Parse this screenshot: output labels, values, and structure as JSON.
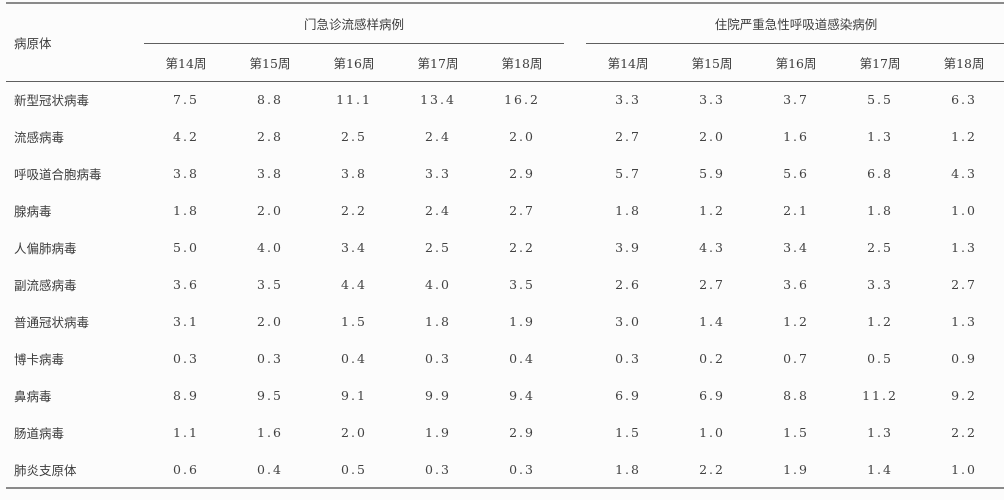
{
  "table": {
    "pathogen_header": "病原体",
    "groups": [
      {
        "label": "门急诊流感样病例",
        "weeks": [
          "第14周",
          "第15周",
          "第16周",
          "第17周",
          "第18周"
        ]
      },
      {
        "label": "住院严重急性呼吸道感染病例",
        "weeks": [
          "第14周",
          "第15周",
          "第16周",
          "第17周",
          "第18周"
        ]
      }
    ],
    "rows": [
      {
        "pathogen": "新型冠状病毒",
        "outpatient": [
          "7.5",
          "8.8",
          "11.1",
          "13.4",
          "16.2"
        ],
        "inpatient": [
          "3.3",
          "3.3",
          "3.7",
          "5.5",
          "6.3"
        ]
      },
      {
        "pathogen": "流感病毒",
        "outpatient": [
          "4.2",
          "2.8",
          "2.5",
          "2.4",
          "2.0"
        ],
        "inpatient": [
          "2.7",
          "2.0",
          "1.6",
          "1.3",
          "1.2"
        ]
      },
      {
        "pathogen": "呼吸道合胞病毒",
        "outpatient": [
          "3.8",
          "3.8",
          "3.8",
          "3.3",
          "2.9"
        ],
        "inpatient": [
          "5.7",
          "5.9",
          "5.6",
          "6.8",
          "4.3"
        ]
      },
      {
        "pathogen": "腺病毒",
        "outpatient": [
          "1.8",
          "2.0",
          "2.2",
          "2.4",
          "2.7"
        ],
        "inpatient": [
          "1.8",
          "1.2",
          "2.1",
          "1.8",
          "1.0"
        ]
      },
      {
        "pathogen": "人偏肺病毒",
        "outpatient": [
          "5.0",
          "4.0",
          "3.4",
          "2.5",
          "2.2"
        ],
        "inpatient": [
          "3.9",
          "4.3",
          "3.4",
          "2.5",
          "1.3"
        ]
      },
      {
        "pathogen": "副流感病毒",
        "outpatient": [
          "3.6",
          "3.5",
          "4.4",
          "4.0",
          "3.5"
        ],
        "inpatient": [
          "2.6",
          "2.7",
          "3.6",
          "3.3",
          "2.7"
        ]
      },
      {
        "pathogen": "普通冠状病毒",
        "outpatient": [
          "3.1",
          "2.0",
          "1.5",
          "1.8",
          "1.9"
        ],
        "inpatient": [
          "3.0",
          "1.4",
          "1.2",
          "1.2",
          "1.3"
        ]
      },
      {
        "pathogen": "博卡病毒",
        "outpatient": [
          "0.3",
          "0.3",
          "0.4",
          "0.3",
          "0.4"
        ],
        "inpatient": [
          "0.3",
          "0.2",
          "0.7",
          "0.5",
          "0.9"
        ]
      },
      {
        "pathogen": "鼻病毒",
        "outpatient": [
          "8.9",
          "9.5",
          "9.1",
          "9.9",
          "9.4"
        ],
        "inpatient": [
          "6.9",
          "6.9",
          "8.8",
          "11.2",
          "9.2"
        ]
      },
      {
        "pathogen": "肠道病毒",
        "outpatient": [
          "1.1",
          "1.6",
          "2.0",
          "1.9",
          "2.9"
        ],
        "inpatient": [
          "1.5",
          "1.0",
          "1.5",
          "1.3",
          "2.2"
        ]
      },
      {
        "pathogen": "肺炎支原体",
        "outpatient": [
          "0.6",
          "0.4",
          "0.5",
          "0.3",
          "0.3"
        ],
        "inpatient": [
          "1.8",
          "2.2",
          "1.9",
          "1.4",
          "1.0"
        ]
      }
    ]
  }
}
